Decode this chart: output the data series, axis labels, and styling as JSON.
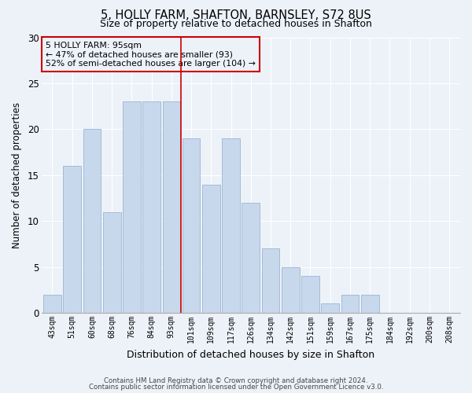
{
  "title1": "5, HOLLY FARM, SHAFTON, BARNSLEY, S72 8US",
  "title2": "Size of property relative to detached houses in Shafton",
  "xlabel": "Distribution of detached houses by size in Shafton",
  "ylabel": "Number of detached properties",
  "categories": [
    "43sqm",
    "51sqm",
    "60sqm",
    "68sqm",
    "76sqm",
    "84sqm",
    "93sqm",
    "101sqm",
    "109sqm",
    "117sqm",
    "126sqm",
    "134sqm",
    "142sqm",
    "151sqm",
    "159sqm",
    "167sqm",
    "175sqm",
    "184sqm",
    "192sqm",
    "200sqm",
    "208sqm"
  ],
  "values": [
    2,
    16,
    20,
    11,
    23,
    23,
    23,
    19,
    14,
    19,
    12,
    7,
    5,
    4,
    1,
    2,
    2,
    0,
    0,
    0,
    0
  ],
  "bar_color": "#c8d8ec",
  "bar_edgecolor": "#9ab5d0",
  "vline_x": 6.5,
  "vline_color": "#cc0000",
  "annotation_text": "5 HOLLY FARM: 95sqm\n← 47% of detached houses are smaller (93)\n52% of semi-detached houses are larger (104) →",
  "annotation_box_edgecolor": "#cc0000",
  "ylim": [
    0,
    30
  ],
  "yticks": [
    0,
    5,
    10,
    15,
    20,
    25,
    30
  ],
  "footer1": "Contains HM Land Registry data © Crown copyright and database right 2024.",
  "footer2": "Contains public sector information licensed under the Open Government Licence v3.0.",
  "bg_color": "#edf2f9",
  "grid_color": "#ffffff"
}
